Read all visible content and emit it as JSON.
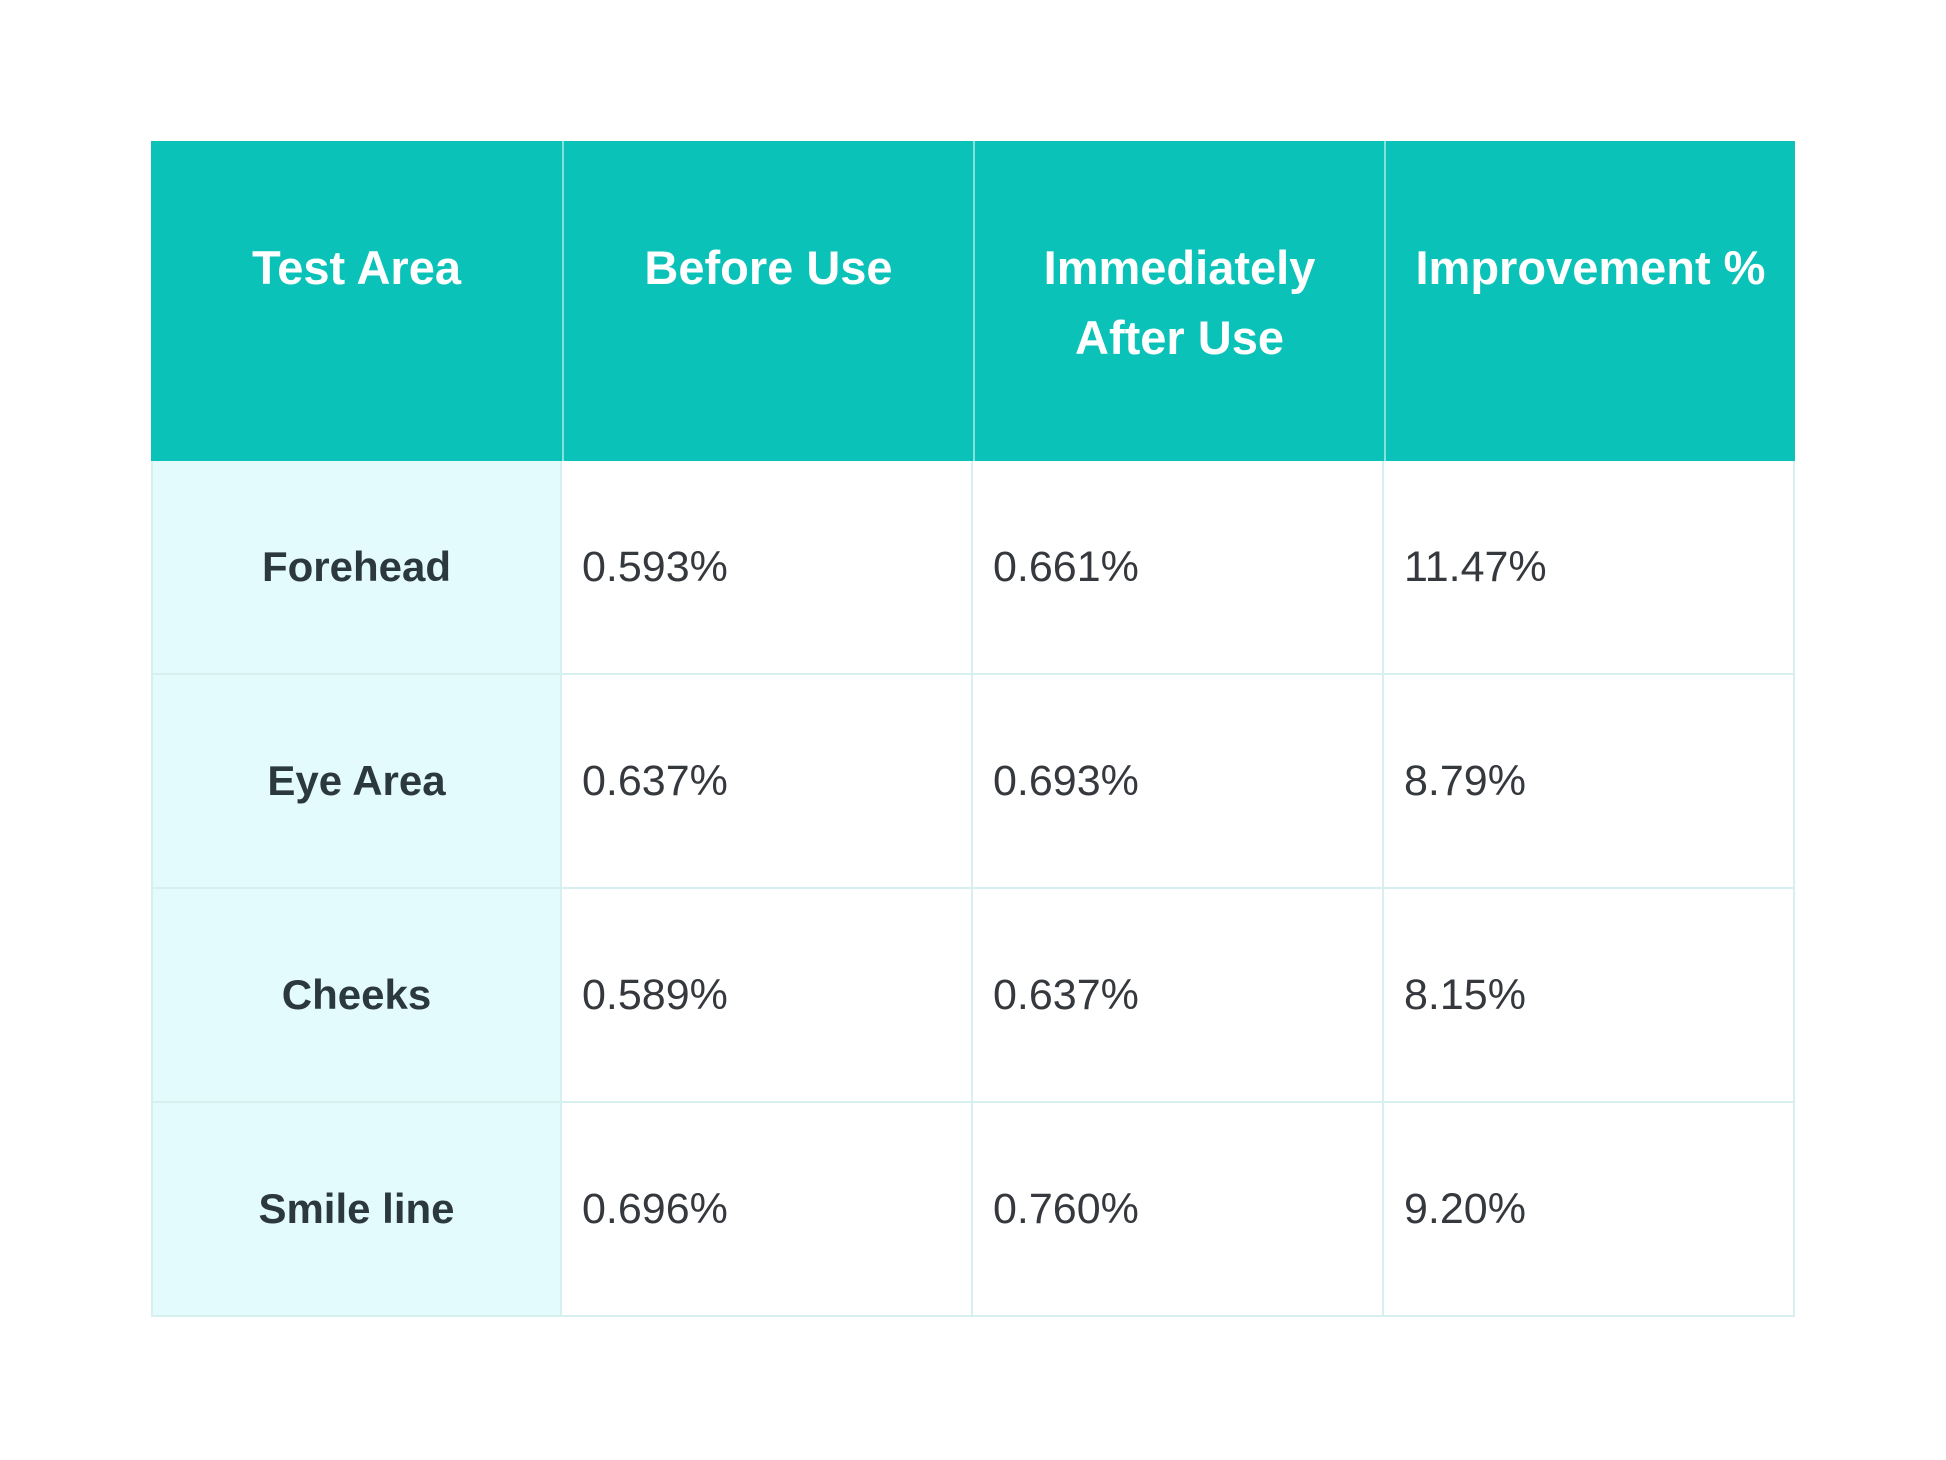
{
  "table": {
    "headers": [
      "Test Area",
      "Before Use",
      "Immediately After Use",
      "Improvement %"
    ],
    "rows": [
      {
        "area": "Forehead",
        "before": "0.593%",
        "after": "0.661%",
        "improvement": "11.47%"
      },
      {
        "area": "Eye Area",
        "before": "0.637%",
        "after": "0.693%",
        "improvement": "8.79%"
      },
      {
        "area": "Cheeks",
        "before": "0.589%",
        "after": "0.637%",
        "improvement": "8.15%"
      },
      {
        "area": "Smile line",
        "before": "0.696%",
        "after": "0.760%",
        "improvement": "9.20%"
      }
    ],
    "colors": {
      "header_bg": "#0bc2b8",
      "header_text": "#ffffff",
      "header_divider": "rgba(255,255,255,0.5)",
      "label_bg": "#e3fbfc",
      "label_text": "#2b383d",
      "value_text": "#35393d",
      "grid_line": "#d7efee"
    }
  },
  "chart_data": {
    "type": "table",
    "columns": [
      "Test Area",
      "Before Use",
      "Immediately After Use",
      "Improvement %"
    ],
    "categories": [
      "Forehead",
      "Eye Area",
      "Cheeks",
      "Smile line"
    ],
    "series": [
      {
        "name": "Before Use",
        "unit": "%",
        "values": [
          0.593,
          0.637,
          0.589,
          0.696
        ]
      },
      {
        "name": "Immediately After Use",
        "unit": "%",
        "values": [
          0.661,
          0.693,
          0.637,
          0.76
        ]
      },
      {
        "name": "Improvement %",
        "unit": "%",
        "values": [
          11.47,
          8.79,
          8.15,
          9.2
        ]
      }
    ],
    "rows": [
      [
        "Forehead",
        "0.593%",
        "0.661%",
        "11.47%"
      ],
      [
        "Eye Area",
        "0.637%",
        "0.693%",
        "8.79%"
      ],
      [
        "Cheeks",
        "0.589%",
        "0.637%",
        "8.15%"
      ],
      [
        "Smile line",
        "0.696%",
        "0.760%",
        "9.20%"
      ]
    ]
  }
}
